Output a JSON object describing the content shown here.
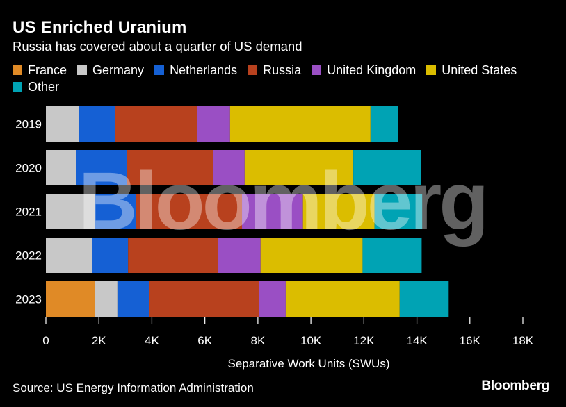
{
  "header": {
    "title": "US Enriched Uranium",
    "subtitle": "Russia has covered about a quarter of US demand"
  },
  "footer": {
    "source": "Source: US Energy Information Administration",
    "brand": "Bloomberg"
  },
  "watermark": "Bloomberg",
  "colors": {
    "France": "#e08a26",
    "Germany": "#c8c8c8",
    "Netherlands": "#1560d4",
    "Russia": "#b8411e",
    "United Kingdom": "#9a4fc4",
    "United States": "#dbbd00",
    "Other": "#00a3b4"
  },
  "chart_data": {
    "type": "bar",
    "orientation": "horizontal",
    "stacked": true,
    "title": "US Enriched Uranium",
    "subtitle": "Russia has covered about a quarter of US demand",
    "xlabel": "Separative Work Units (SWUs)",
    "ylabel": "",
    "xlim": [
      0,
      18000
    ],
    "x_ticks": [
      "0",
      "2K",
      "4K",
      "6K",
      "8K",
      "10K",
      "12K",
      "14K",
      "16K",
      "18K"
    ],
    "legend_position": "top",
    "categories": [
      "2019",
      "2020",
      "2021",
      "2022",
      "2023"
    ],
    "series": [
      {
        "name": "France",
        "values": [
          0,
          0,
          0,
          0,
          1850
        ]
      },
      {
        "name": "Germany",
        "values": [
          1250,
          1150,
          1850,
          1750,
          850
        ]
      },
      {
        "name": "Netherlands",
        "values": [
          1350,
          1900,
          1550,
          1350,
          1200
        ]
      },
      {
        "name": "Russia",
        "values": [
          3100,
          3250,
          4000,
          3400,
          4150
        ]
      },
      {
        "name": "United Kingdom",
        "values": [
          1250,
          1200,
          2300,
          1600,
          1000
        ]
      },
      {
        "name": "United States",
        "values": [
          5300,
          4100,
          2700,
          3850,
          4300
        ]
      },
      {
        "name": "Other",
        "values": [
          1050,
          2550,
          1800,
          2230,
          1850
        ]
      }
    ]
  }
}
